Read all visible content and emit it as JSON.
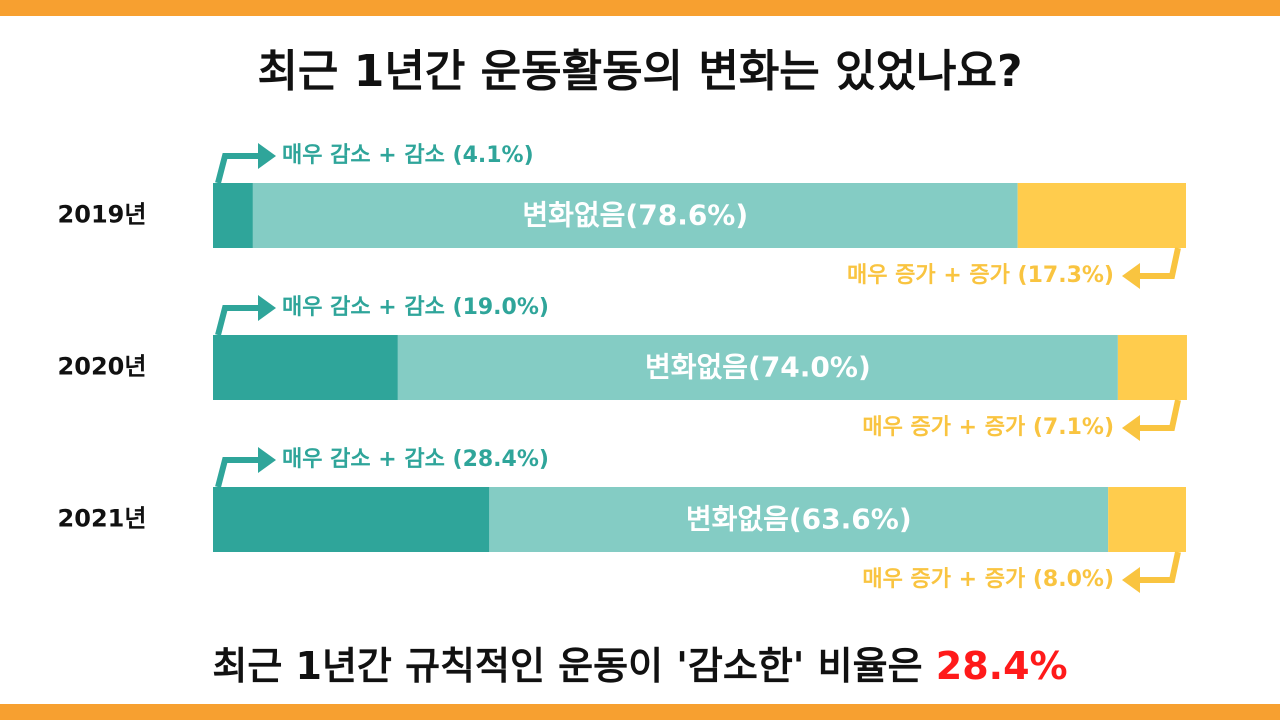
{
  "chart_data": {
    "type": "stacked-bar-horizontal",
    "title": "최근 1년간 운동활동의 변화는 있었나요?",
    "categories": [
      "2019년",
      "2020년",
      "2021년"
    ],
    "series": [
      {
        "color": "#2fa59a",
        "label_color": "#2fa59a",
        "values": [
          4.1,
          19.0,
          28.4
        ],
        "value_labels": [
          "매우 감소 + 감소 (4.1%)",
          "매우 감소 + 감소 (19.0%)",
          "매우 감소 + 감소 (28.4%)"
        ]
      },
      {
        "color": "#84ccc4",
        "label_color": "#ffffff",
        "values": [
          78.6,
          74.0,
          63.6
        ],
        "value_labels": [
          "변화없음(78.6%)",
          "변화없음(74.0%)",
          "변화없음(63.6%)"
        ]
      },
      {
        "color": "#ffcc4d",
        "label_color": "#f9c440",
        "values": [
          17.3,
          7.1,
          8.0
        ],
        "value_labels": [
          "매우 증가 + 증가 (17.3%)",
          "매우 증가 + 증가 (7.1%)",
          "매우 증가 + 증가 (8.0%)"
        ]
      }
    ],
    "xlim": [
      0,
      100
    ],
    "footer": "최근 1년간 규칙적인 운동이 '감소한' 비율은",
    "footer_highlight": "28.4%"
  }
}
